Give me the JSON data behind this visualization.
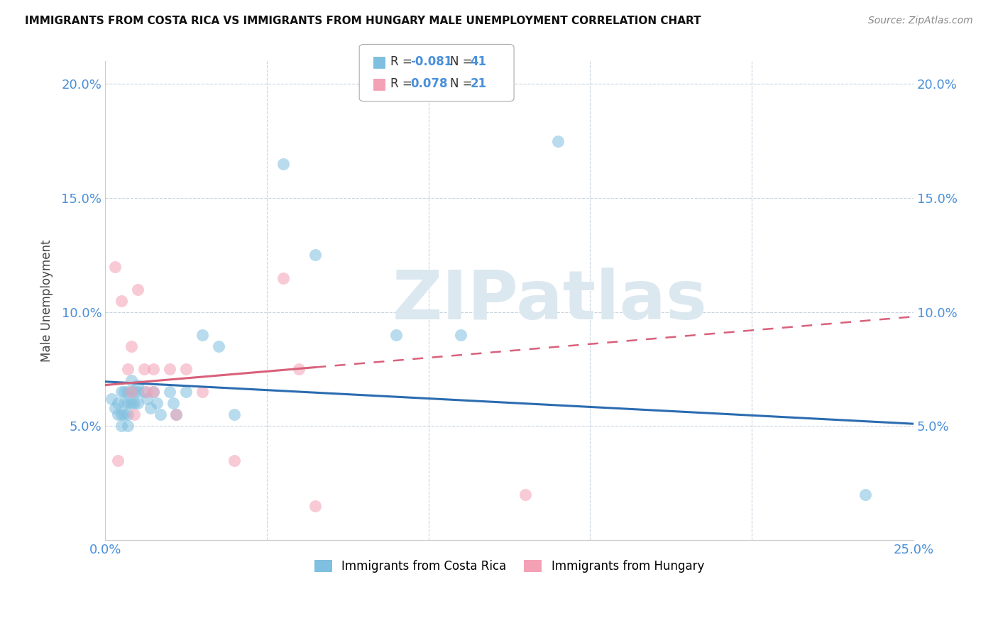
{
  "title": "IMMIGRANTS FROM COSTA RICA VS IMMIGRANTS FROM HUNGARY MALE UNEMPLOYMENT CORRELATION CHART",
  "source": "Source: ZipAtlas.com",
  "ylabel": "Male Unemployment",
  "xlim": [
    0.0,
    0.25
  ],
  "ylim": [
    0.0,
    0.21
  ],
  "xticks": [
    0.0,
    0.05,
    0.1,
    0.15,
    0.2,
    0.25
  ],
  "xticklabels": [
    "0.0%",
    "",
    "",
    "",
    "",
    "25.0%"
  ],
  "yticks": [
    0.05,
    0.1,
    0.15,
    0.2
  ],
  "yticklabels": [
    "5.0%",
    "10.0%",
    "15.0%",
    "20.0%"
  ],
  "costa_rica_R": "-0.081",
  "costa_rica_N": "41",
  "hungary_R": "0.078",
  "hungary_N": "21",
  "costa_rica_color": "#7fbfdf",
  "hungary_color": "#f4a0b5",
  "costa_rica_line_color": "#2b6cb0",
  "hungary_line_color": "#d9607a",
  "watermark": "ZIPatlas",
  "watermark_color": "#dce8f0",
  "costa_rica_x": [
    0.002,
    0.003,
    0.004,
    0.004,
    0.005,
    0.005,
    0.005,
    0.006,
    0.006,
    0.006,
    0.007,
    0.007,
    0.007,
    0.007,
    0.008,
    0.008,
    0.008,
    0.009,
    0.009,
    0.01,
    0.01,
    0.01,
    0.012,
    0.013,
    0.014,
    0.015,
    0.016,
    0.017,
    0.02,
    0.021,
    0.022,
    0.025,
    0.03,
    0.035,
    0.04,
    0.055,
    0.065,
    0.09,
    0.11,
    0.14,
    0.235
  ],
  "costa_rica_y": [
    0.062,
    0.058,
    0.055,
    0.06,
    0.065,
    0.055,
    0.05,
    0.065,
    0.06,
    0.055,
    0.065,
    0.06,
    0.055,
    0.05,
    0.07,
    0.065,
    0.06,
    0.065,
    0.06,
    0.068,
    0.065,
    0.06,
    0.065,
    0.062,
    0.058,
    0.065,
    0.06,
    0.055,
    0.065,
    0.06,
    0.055,
    0.065,
    0.09,
    0.085,
    0.055,
    0.165,
    0.125,
    0.09,
    0.09,
    0.175,
    0.02
  ],
  "hungary_x": [
    0.003,
    0.004,
    0.005,
    0.007,
    0.008,
    0.008,
    0.009,
    0.01,
    0.012,
    0.013,
    0.015,
    0.015,
    0.02,
    0.022,
    0.025,
    0.03,
    0.04,
    0.055,
    0.06,
    0.065,
    0.13
  ],
  "hungary_y": [
    0.12,
    0.035,
    0.105,
    0.075,
    0.085,
    0.065,
    0.055,
    0.11,
    0.075,
    0.065,
    0.075,
    0.065,
    0.075,
    0.055,
    0.075,
    0.065,
    0.035,
    0.115,
    0.075,
    0.015,
    0.02
  ],
  "cr_line_x0": 0.0,
  "cr_line_x1": 0.25,
  "cr_line_y0": 0.0695,
  "cr_line_y1": 0.051,
  "hu_line_x0": 0.0,
  "hu_line_x1": 0.25,
  "hu_line_y0": 0.068,
  "hu_line_y1": 0.098
}
